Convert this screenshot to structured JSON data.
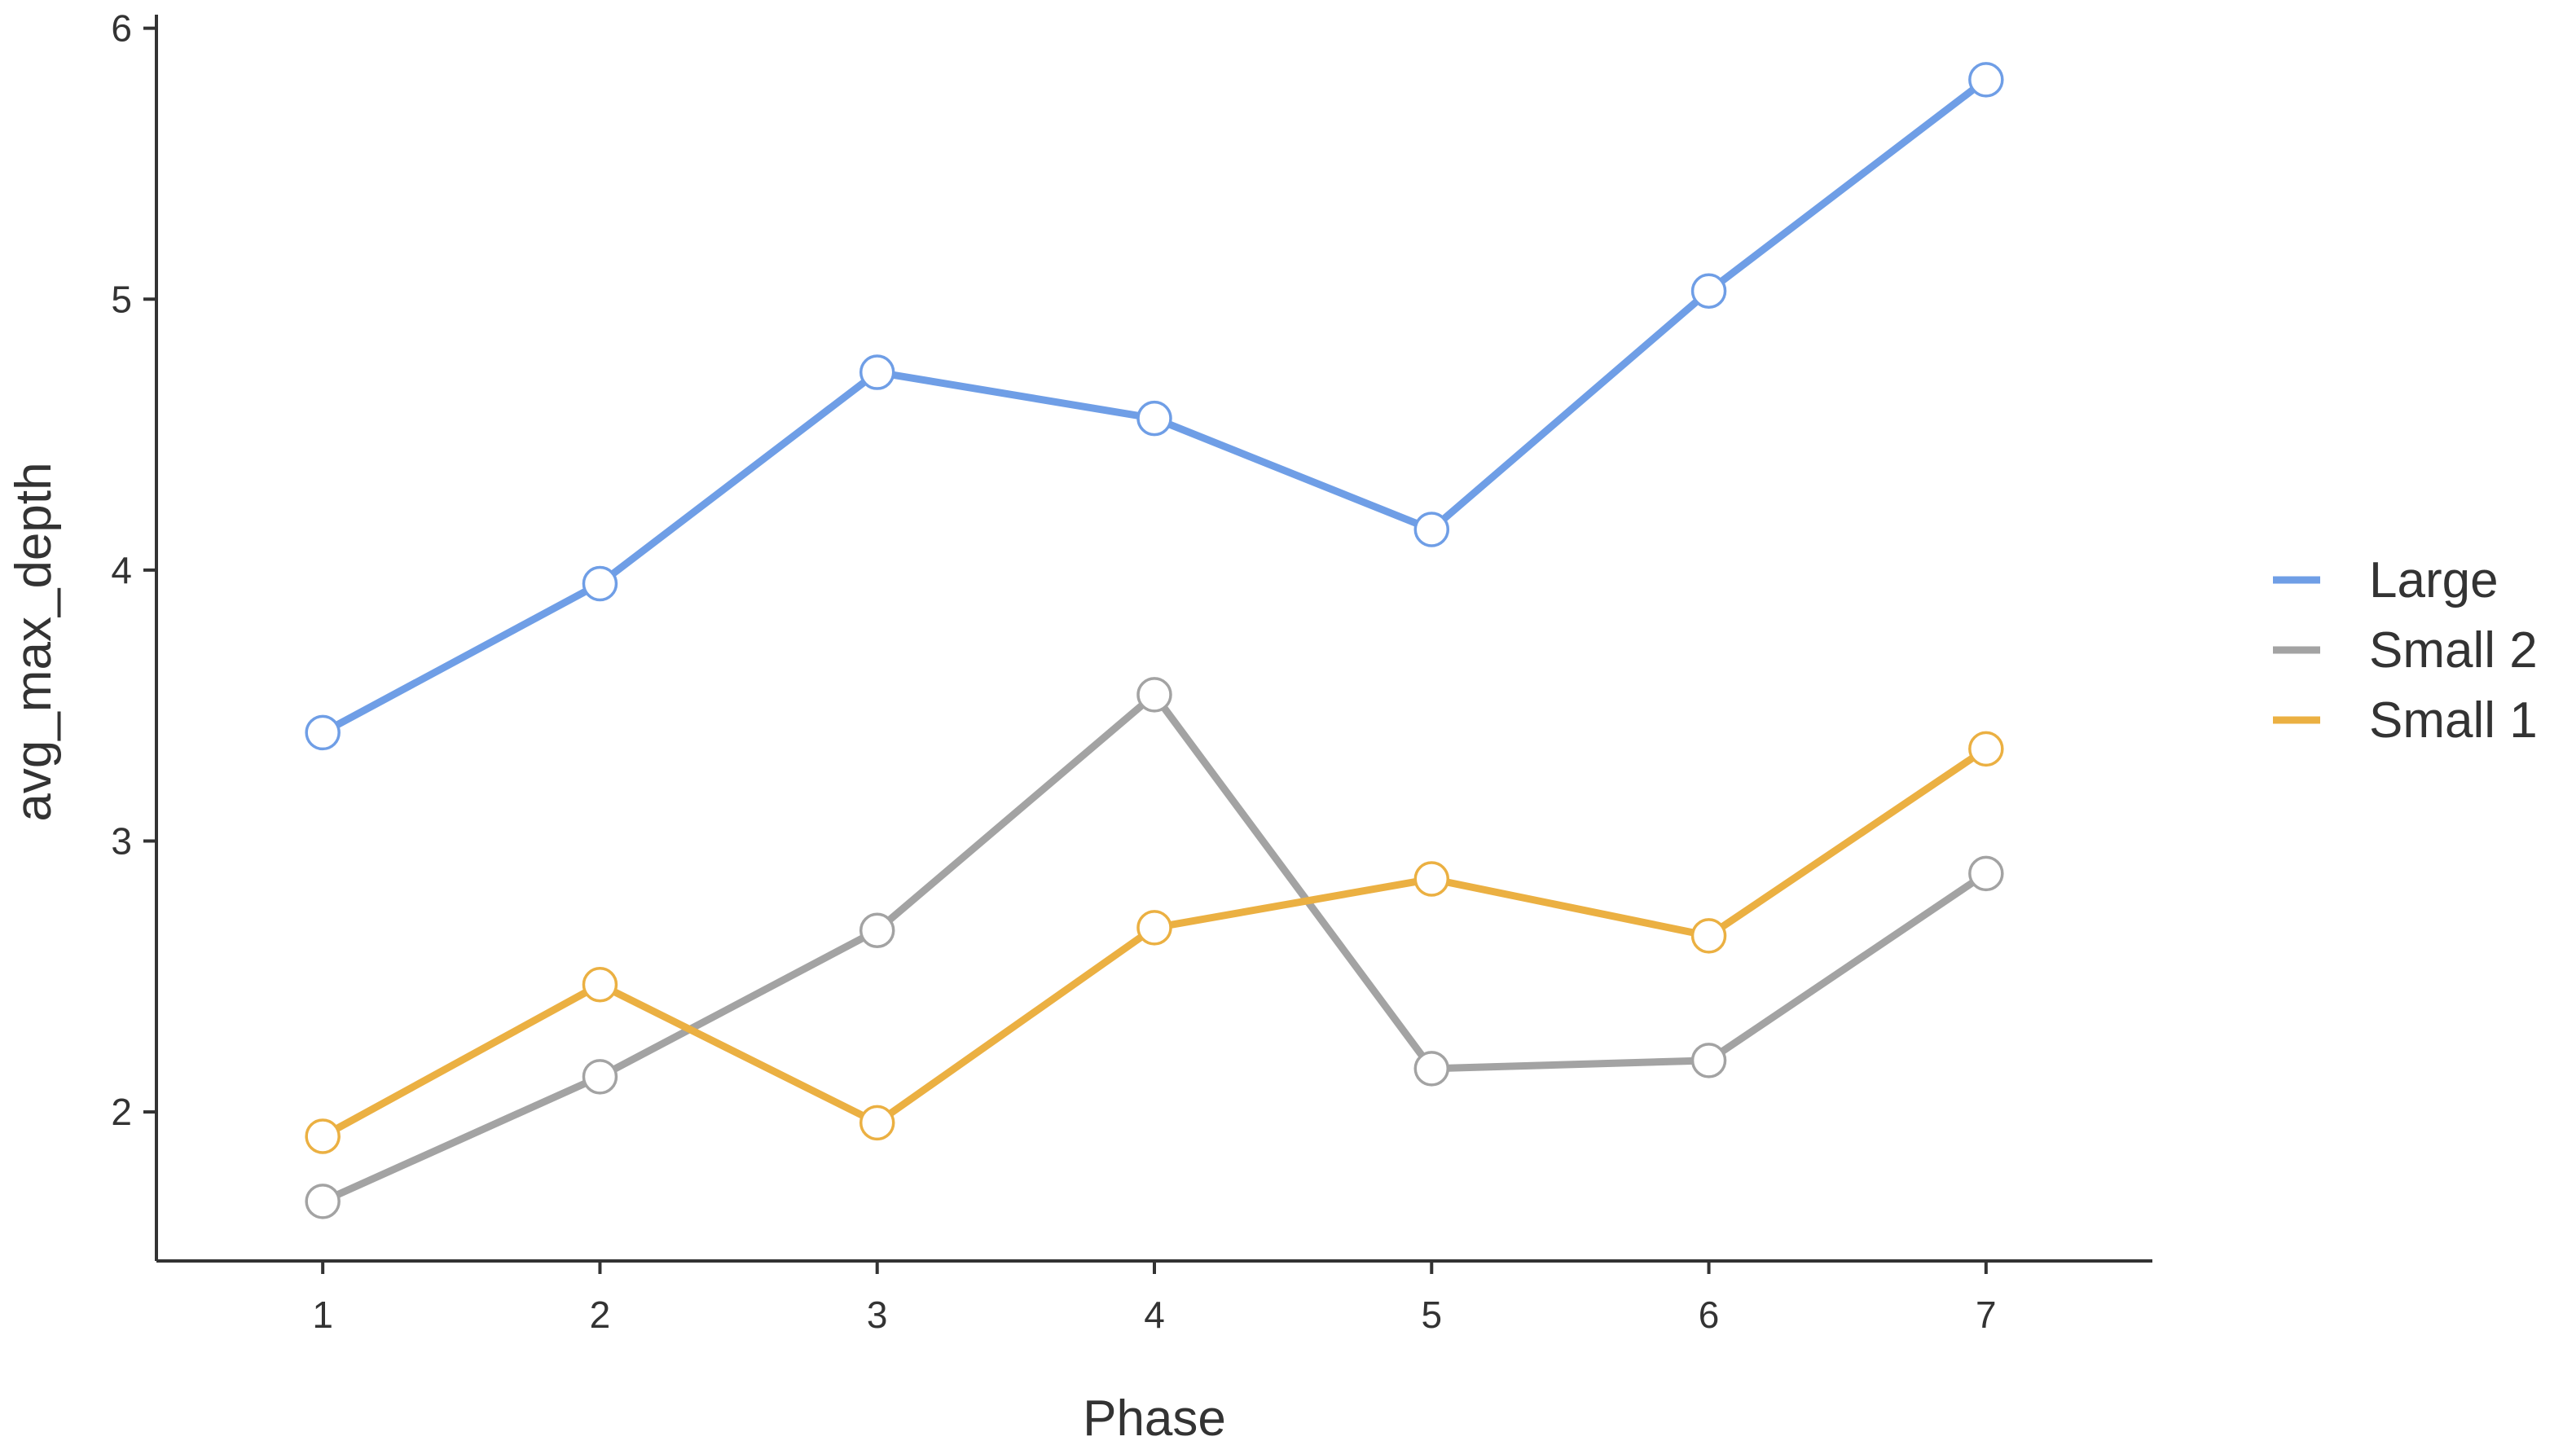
{
  "chart_data": {
    "type": "line",
    "title": "",
    "xlabel": "Phase",
    "ylabel": "avg_max_depth",
    "x": [
      1,
      2,
      3,
      4,
      5,
      6,
      7
    ],
    "x_tick_labels": [
      "1",
      "2",
      "3",
      "4",
      "5",
      "6",
      "7"
    ],
    "y_ticks": [
      2,
      3,
      4,
      5,
      6
    ],
    "y_tick_labels": [
      "2",
      "3",
      "4",
      "5",
      "6"
    ],
    "xlim": [
      0.4,
      7.6
    ],
    "ylim": [
      1.45,
      6.02
    ],
    "grid": false,
    "legend_position": "right",
    "markers": "open-circle",
    "series": [
      {
        "name": "Large",
        "color": "#6f9ee6",
        "values": [
          3.4,
          3.95,
          4.73,
          4.56,
          4.15,
          5.03,
          5.81
        ]
      },
      {
        "name": "Small 2",
        "color": "#a3a3a3",
        "values": [
          1.67,
          2.13,
          2.67,
          3.54,
          2.16,
          2.19,
          2.88
        ]
      },
      {
        "name": "Small 1",
        "color": "#ebb042",
        "values": [
          1.91,
          2.47,
          1.96,
          2.68,
          2.86,
          2.65,
          3.34
        ]
      }
    ]
  }
}
